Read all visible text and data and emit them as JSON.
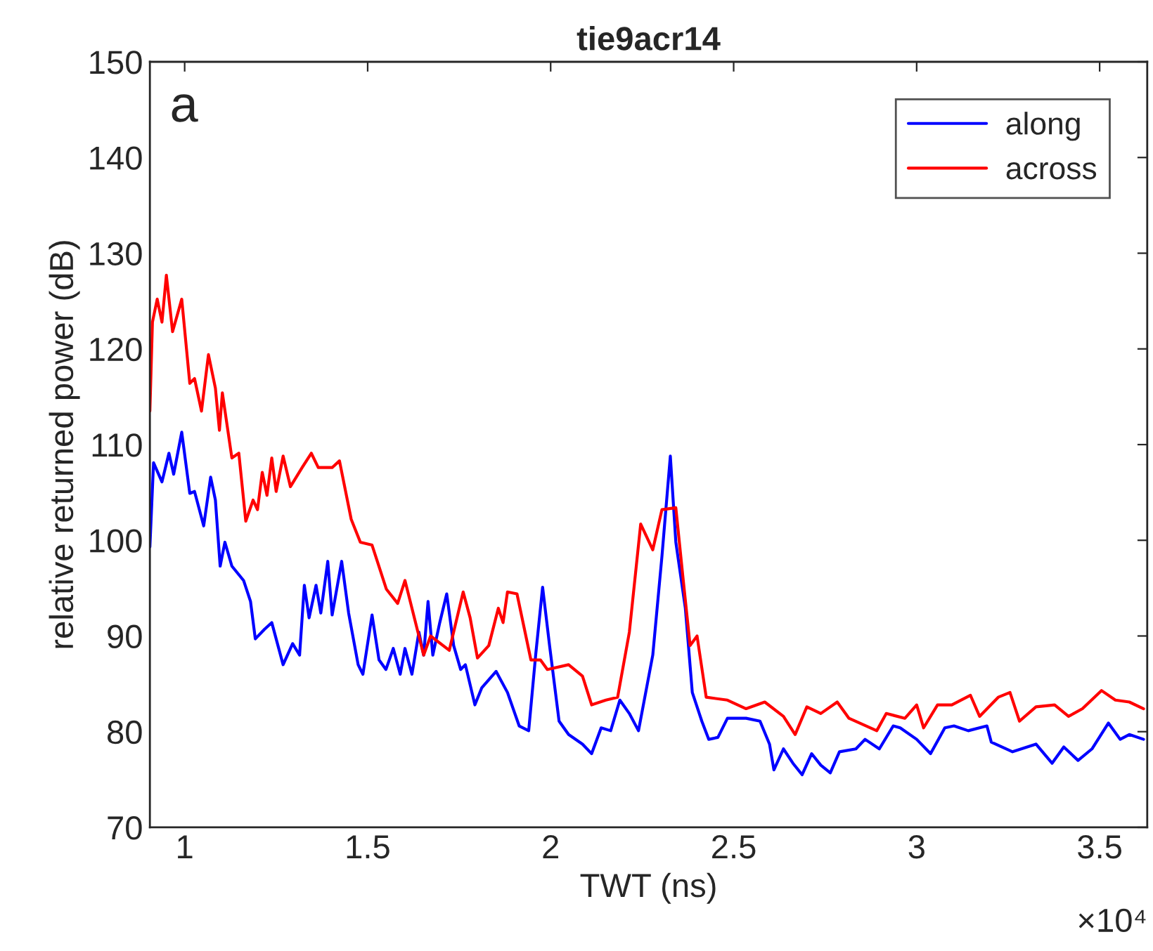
{
  "chart_data": {
    "type": "line",
    "title": "tie9acr14",
    "xlabel": "TWT (ns)",
    "ylabel": "relative returned power (dB)",
    "annotations": [
      "a",
      "×10⁴"
    ],
    "xlim": [
      0.905,
      3.63
    ],
    "xticks": [
      1,
      1.5,
      2,
      2.5,
      3,
      3.5
    ],
    "ylim": [
      70,
      150
    ],
    "yticks": [
      70,
      80,
      90,
      100,
      110,
      120,
      130,
      140,
      150
    ],
    "grid": false,
    "legend": "top right",
    "marker": "none",
    "line_style": "solid",
    "series": [
      {
        "name": "along",
        "color": "#0000ff",
        "x": [
          0.905,
          0.915,
          0.938,
          0.957,
          0.97,
          0.992,
          1.014,
          1.027,
          1.052,
          1.071,
          1.084,
          1.097,
          1.11,
          1.129,
          1.161,
          1.18,
          1.193,
          1.218,
          1.238,
          1.269,
          1.295,
          1.314,
          1.327,
          1.34,
          1.359,
          1.372,
          1.391,
          1.403,
          1.429,
          1.448,
          1.474,
          1.487,
          1.512,
          1.531,
          1.55,
          1.57,
          1.589,
          1.602,
          1.621,
          1.64,
          1.653,
          1.665,
          1.678,
          1.697,
          1.716,
          1.735,
          1.754,
          1.767,
          1.793,
          1.812,
          1.851,
          1.882,
          1.914,
          1.94,
          1.959,
          1.978,
          1.997,
          2.023,
          2.049,
          2.087,
          2.112,
          2.138,
          2.164,
          2.189,
          2.215,
          2.24,
          2.279,
          2.304,
          2.327,
          2.342,
          2.368,
          2.387,
          2.413,
          2.432,
          2.457,
          2.483,
          2.534,
          2.572,
          2.598,
          2.61,
          2.636,
          2.662,
          2.687,
          2.713,
          2.738,
          2.764,
          2.789,
          2.834,
          2.859,
          2.898,
          2.936,
          2.955,
          3.0,
          3.038,
          3.077,
          3.102,
          3.141,
          3.192,
          3.204,
          3.262,
          3.326,
          3.37,
          3.402,
          3.441,
          3.479,
          3.524,
          3.556,
          3.581,
          3.62
        ],
        "values": [
          99.3,
          108.1,
          106.1,
          109.1,
          106.9,
          111.3,
          104.9,
          105.1,
          101.5,
          106.6,
          104.2,
          97.3,
          99.8,
          97.3,
          95.8,
          93.6,
          89.7,
          90.7,
          91.4,
          87,
          89.2,
          88,
          95.3,
          91.9,
          95.3,
          92.4,
          97.8,
          92.2,
          97.8,
          92.4,
          87,
          86,
          92.2,
          87.5,
          86.5,
          88.7,
          86,
          88.7,
          86,
          90.4,
          88,
          93.6,
          88,
          91.4,
          94.4,
          89,
          86.5,
          87,
          82.8,
          84.6,
          86.3,
          84.1,
          80.6,
          80.1,
          88,
          95.1,
          89,
          81.1,
          79.7,
          78.7,
          77.7,
          80.4,
          80.1,
          83.3,
          81.9,
          80.1,
          88,
          98.3,
          108.8,
          99.8,
          92.9,
          84.1,
          81.1,
          79.2,
          79.4,
          81.4,
          81.4,
          81.1,
          78.7,
          76,
          78.2,
          76.7,
          75.5,
          77.7,
          76.5,
          75.7,
          77.9,
          78.2,
          79.2,
          78.2,
          80.6,
          80.4,
          79.2,
          77.7,
          80.4,
          80.6,
          80.1,
          80.6,
          78.9,
          77.9,
          78.7,
          76.7,
          78.4,
          77,
          78.2,
          80.9,
          79.2,
          79.7,
          79.2
        ]
      },
      {
        "name": "across",
        "color": "#ff0000",
        "x": [
          0.905,
          0.912,
          0.925,
          0.938,
          0.95,
          0.967,
          0.992,
          1.014,
          1.027,
          1.046,
          1.065,
          1.084,
          1.095,
          1.103,
          1.129,
          1.148,
          1.167,
          1.187,
          1.199,
          1.212,
          1.225,
          1.238,
          1.25,
          1.269,
          1.289,
          1.321,
          1.346,
          1.365,
          1.403,
          1.423,
          1.455,
          1.48,
          1.512,
          1.551,
          1.582,
          1.602,
          1.64,
          1.653,
          1.672,
          1.723,
          1.761,
          1.78,
          1.8,
          1.831,
          1.857,
          1.87,
          1.882,
          1.908,
          1.946,
          1.972,
          1.991,
          2.049,
          2.087,
          2.112,
          2.151,
          2.183,
          2.215,
          2.246,
          2.279,
          2.304,
          2.342,
          2.361,
          2.381,
          2.4,
          2.425,
          2.483,
          2.534,
          2.585,
          2.636,
          2.668,
          2.7,
          2.738,
          2.783,
          2.815,
          2.891,
          2.917,
          2.968,
          3.0,
          3.019,
          3.057,
          3.096,
          3.147,
          3.172,
          3.223,
          3.255,
          3.281,
          3.326,
          3.377,
          3.415,
          3.453,
          3.505,
          3.543,
          3.581,
          3.62
        ],
        "values": [
          113.5,
          122.8,
          125.2,
          122.8,
          127.7,
          121.8,
          125.2,
          116.4,
          116.9,
          113.5,
          119.4,
          115.9,
          111.5,
          115.4,
          108.6,
          109.1,
          102,
          104.2,
          103.2,
          107.1,
          104.7,
          108.6,
          105.1,
          108.8,
          105.6,
          107.6,
          109.1,
          107.6,
          107.6,
          108.3,
          102.2,
          99.8,
          99.5,
          94.9,
          93.4,
          95.8,
          90,
          88,
          90,
          88.5,
          94.6,
          91.9,
          87.7,
          89,
          92.9,
          91.4,
          94.6,
          94.4,
          87.5,
          87.5,
          86.5,
          87,
          85.8,
          82.8,
          83.3,
          83.6,
          90.4,
          101.7,
          99,
          103.2,
          103.4,
          96.3,
          89,
          90,
          83.6,
          83.3,
          82.4,
          83.1,
          81.6,
          79.7,
          82.6,
          81.9,
          83.1,
          81.4,
          80.1,
          81.9,
          81.4,
          82.8,
          80.4,
          82.8,
          82.8,
          83.8,
          81.6,
          83.6,
          84.1,
          81.1,
          82.6,
          82.8,
          81.6,
          82.4,
          84.3,
          83.3,
          83.1,
          82.4
        ]
      }
    ]
  }
}
